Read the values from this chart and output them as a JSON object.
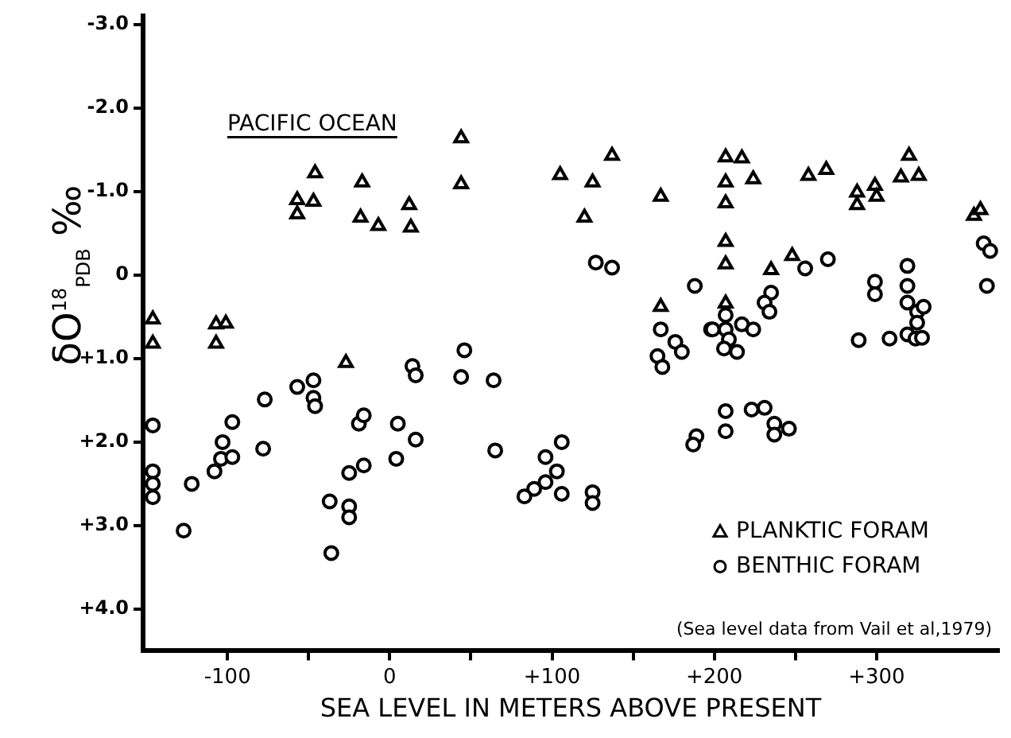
{
  "chart_data": {
    "type": "scatter",
    "title": "PACIFIC OCEAN",
    "xlabel": "SEA LEVEL IN METERS ABOVE PRESENT",
    "ylabel": "δO$^{18}$$_{PDB}$ ‰",
    "annotations": [
      "(Sea level data from Vail et al,1979)"
    ],
    "xlim": [
      -152,
      375
    ],
    "ylim": [
      4.5,
      -3.1
    ],
    "xticks": [
      {
        "value": -100,
        "label": "-100"
      },
      {
        "value": -50,
        "label": null
      },
      0,
      {
        "value": 50,
        "label": null
      },
      {
        "value": 100,
        "label": "+100"
      },
      {
        "value": 150,
        "label": null
      },
      {
        "value": 200,
        "label": "+200"
      },
      {
        "value": 250,
        "label": null
      },
      {
        "value": 300,
        "label": "+300"
      }
    ],
    "yticks": [
      {
        "value": -3,
        "label": "-3.0"
      },
      {
        "value": -2,
        "label": "-2.0"
      },
      {
        "value": -1,
        "label": "-1.0"
      },
      0,
      {
        "value": 1,
        "label": "+1.0"
      },
      {
        "value": 2,
        "label": "+2.0"
      },
      {
        "value": 3,
        "label": "+3.0"
      },
      {
        "value": 4,
        "label": "+4.0"
      }
    ],
    "grid": false,
    "legend": "bottom right",
    "series": [
      {
        "name": "PLANKTIC FORAM",
        "color": "#000000",
        "marker": "triangle",
        "x": [
          -146,
          -146,
          -107,
          -101,
          -107,
          -57,
          -57,
          -47,
          -46,
          -17,
          -18,
          -7,
          12,
          13,
          -27,
          44,
          44,
          105,
          125,
          137,
          120,
          167,
          167,
          207,
          217,
          207,
          224,
          207,
          207,
          207,
          235,
          248,
          207,
          258,
          269,
          288,
          288,
          299,
          300,
          320,
          315,
          326,
          360,
          364
        ],
        "values": [
          0.53,
          0.82,
          0.59,
          0.58,
          0.82,
          -0.9,
          -0.73,
          -0.88,
          -1.22,
          -1.11,
          -0.69,
          -0.59,
          -0.84,
          -0.57,
          1.05,
          -1.64,
          -1.09,
          -1.2,
          -1.11,
          -1.43,
          -0.69,
          -0.94,
          0.38,
          -1.41,
          -1.4,
          -1.11,
          -1.15,
          -0.86,
          -0.4,
          -0.13,
          -0.06,
          -0.23,
          0.34,
          -1.19,
          -1.26,
          -0.99,
          -0.84,
          -1.07,
          -0.94,
          -1.43,
          -1.17,
          -1.19,
          -0.71,
          -0.78
        ]
      },
      {
        "name": "BENTHIC FORAM",
        "color": "#000000",
        "marker": "circle",
        "x": [
          -146,
          -146,
          -146,
          -146,
          -122,
          -127,
          -108,
          -104,
          -97,
          -103,
          -97,
          -77,
          -78,
          -57,
          -47,
          -47,
          -46,
          -37,
          -25,
          -25,
          -36,
          -25,
          -19,
          -16,
          -16,
          5,
          4,
          16,
          14,
          16,
          46,
          44,
          64,
          65,
          127,
          137,
          188,
          167,
          198,
          176,
          180,
          165,
          168,
          106,
          96,
          103,
          96,
          89,
          83,
          106,
          125,
          125,
          189,
          187,
          256,
          270,
          235,
          231,
          234,
          207,
          199,
          207,
          217,
          224,
          209,
          214,
          206,
          207,
          207,
          223,
          231,
          237,
          246,
          237,
          289,
          299,
          299,
          308,
          319,
          319,
          319,
          325,
          329,
          325,
          319,
          324,
          328,
          366,
          370,
          368
        ],
        "values": [
          1.8,
          2.35,
          2.5,
          2.66,
          2.5,
          3.06,
          2.35,
          2.2,
          2.18,
          2.0,
          1.76,
          1.49,
          2.08,
          1.34,
          1.26,
          1.47,
          1.57,
          2.71,
          2.77,
          2.9,
          3.33,
          2.37,
          1.78,
          1.68,
          2.28,
          1.78,
          2.2,
          1.97,
          1.09,
          1.2,
          0.9,
          1.22,
          1.26,
          2.1,
          -0.15,
          -0.09,
          0.13,
          0.65,
          0.65,
          0.8,
          0.92,
          0.97,
          1.1,
          2.0,
          2.18,
          2.35,
          2.48,
          2.56,
          2.65,
          2.62,
          2.6,
          2.73,
          1.93,
          2.03,
          -0.08,
          -0.19,
          0.21,
          0.33,
          0.44,
          0.48,
          0.65,
          0.65,
          0.59,
          0.65,
          0.77,
          0.92,
          0.88,
          1.63,
          1.87,
          1.61,
          1.59,
          1.78,
          1.84,
          1.91,
          0.78,
          0.08,
          0.23,
          0.76,
          -0.11,
          0.13,
          0.33,
          0.44,
          0.38,
          0.57,
          0.71,
          0.76,
          0.75,
          -0.38,
          -0.29,
          0.13
        ]
      }
    ]
  }
}
